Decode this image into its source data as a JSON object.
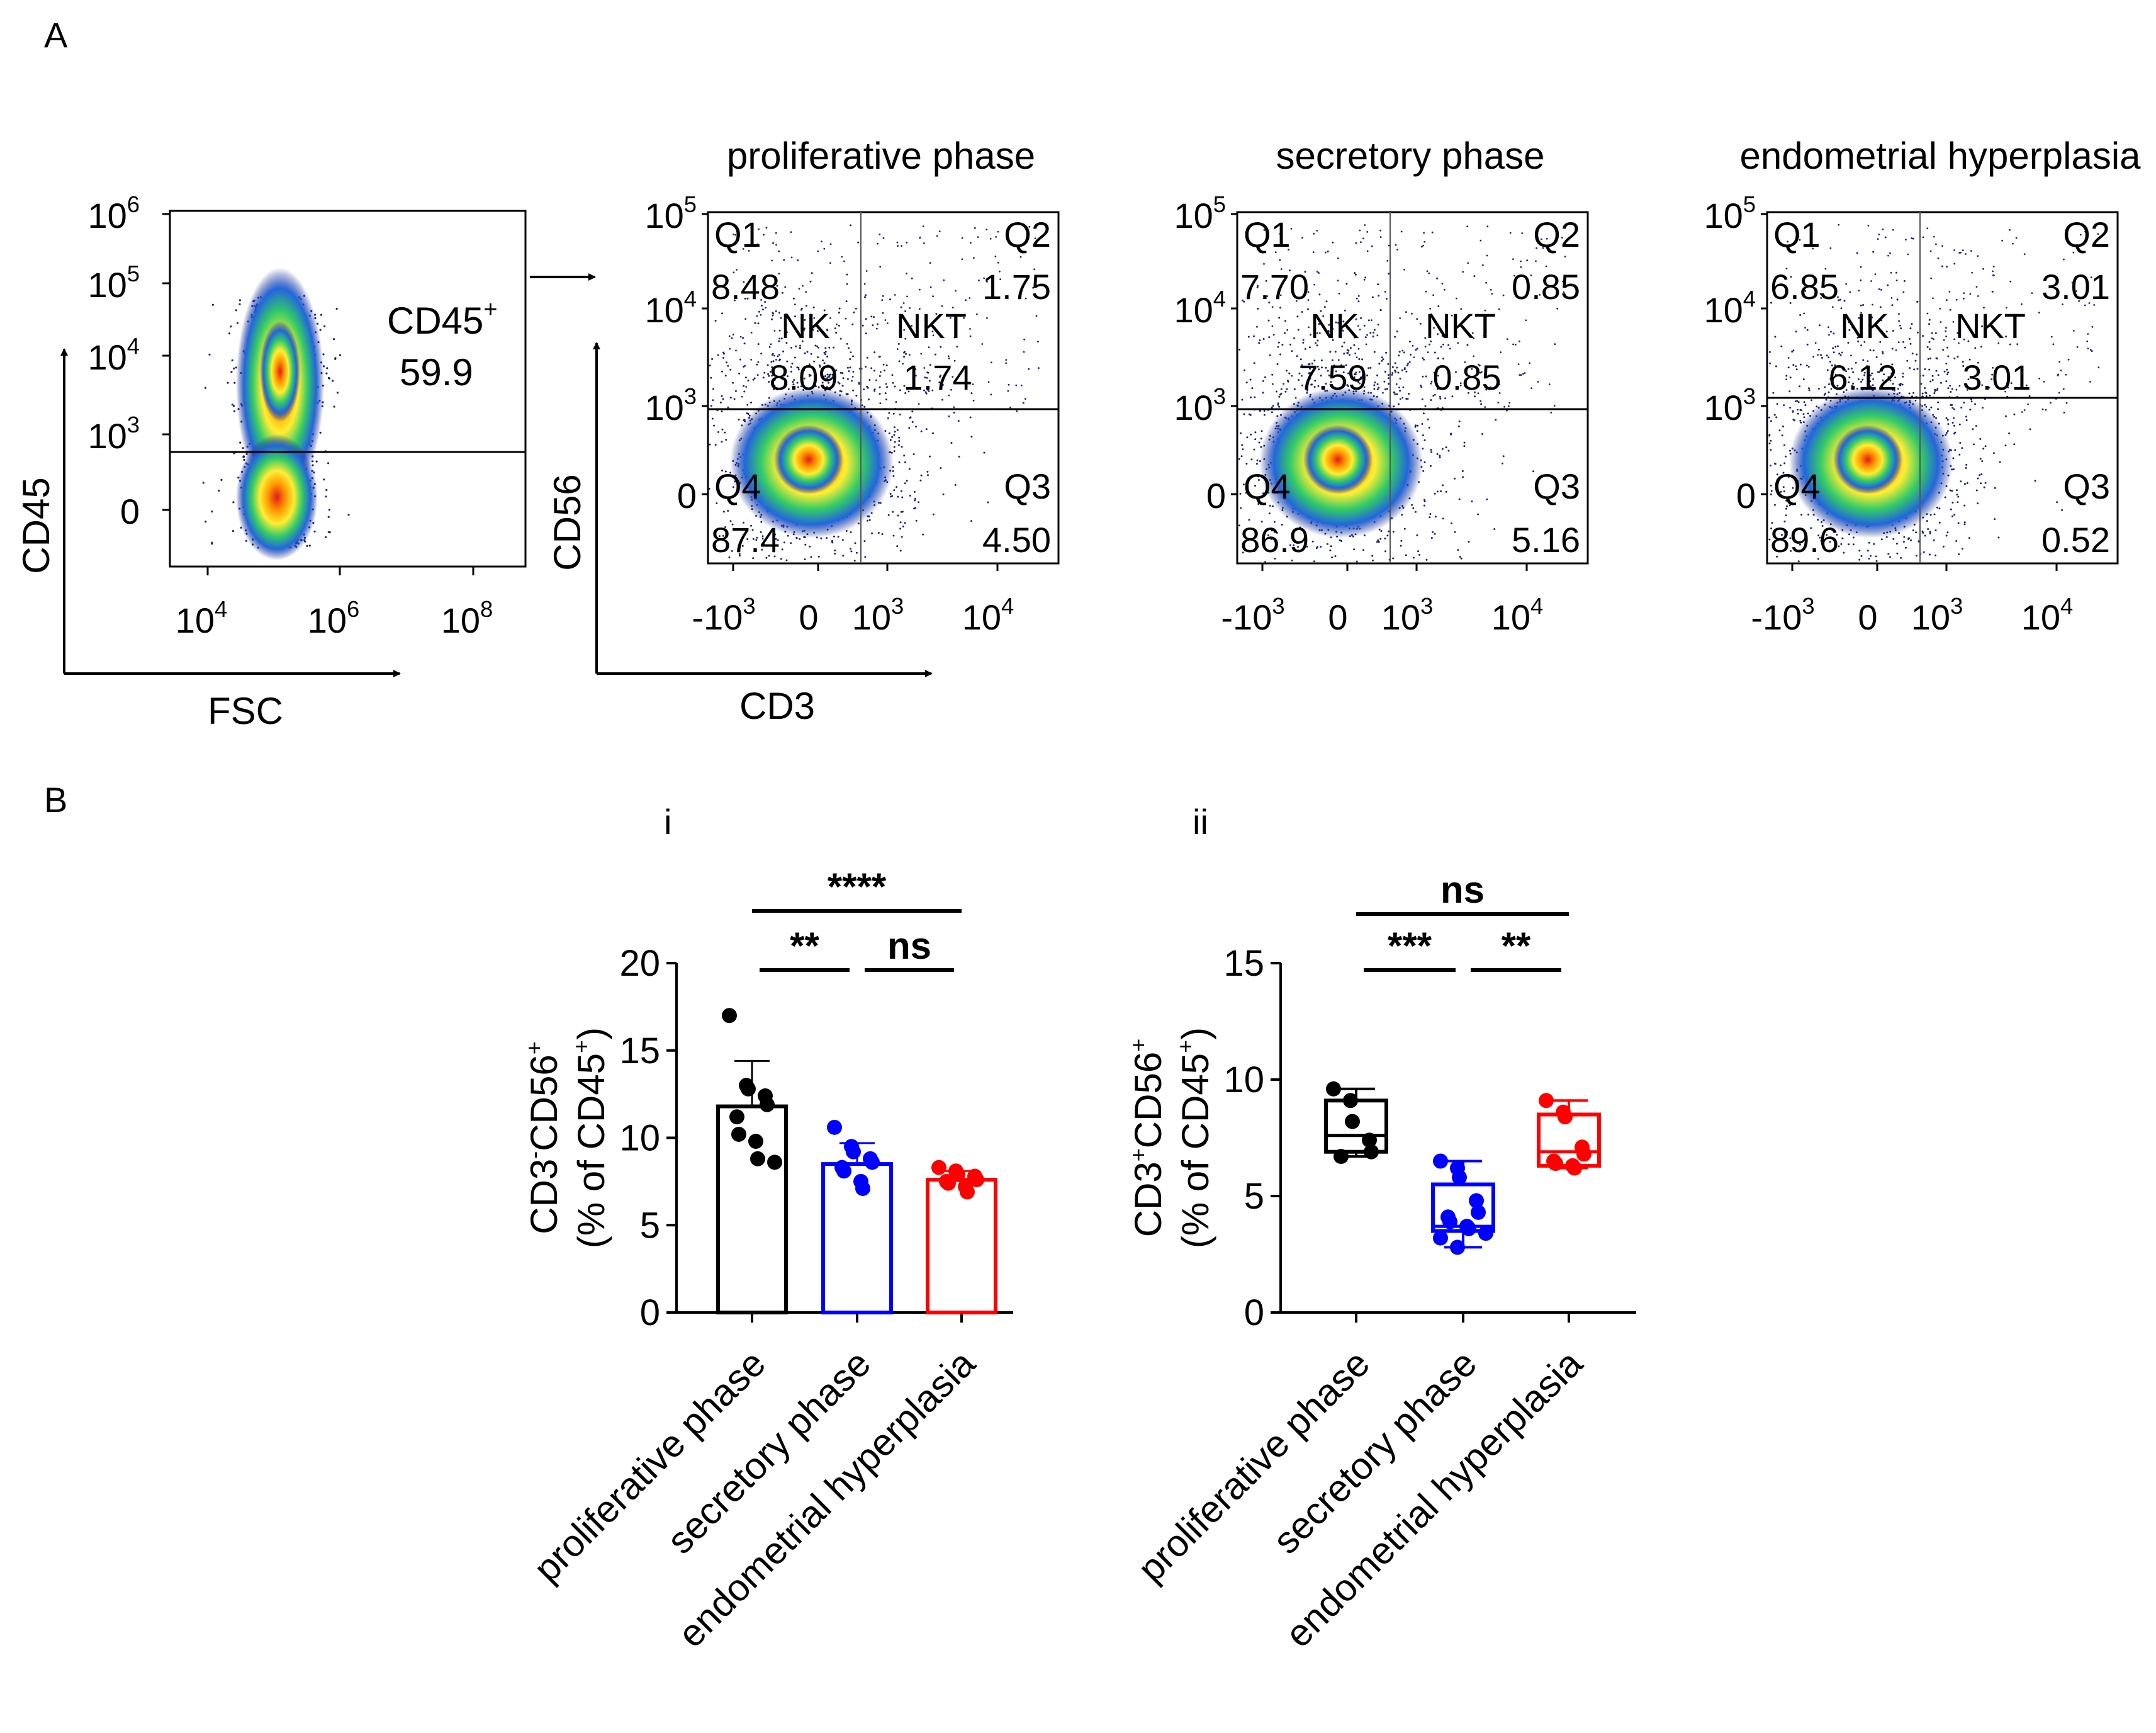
{
  "panel_labels": {
    "a": "A",
    "b": "B"
  },
  "subpanel_labels": {
    "i": "i",
    "ii": "ii"
  },
  "gating": {
    "arrow_label": "→",
    "cd45_gate": {
      "gate_name": "CD45",
      "gate_sup": "+",
      "gate_value": "59.9",
      "y_ticks": [
        {
          "base": "10",
          "exp": "6"
        },
        {
          "base": "10",
          "exp": "5"
        },
        {
          "base": "10",
          "exp": "4"
        },
        {
          "base": "10",
          "exp": "3"
        },
        {
          "base": "0",
          "exp": ""
        }
      ],
      "x_ticks": [
        {
          "base": "10",
          "exp": "4"
        },
        {
          "base": "10",
          "exp": "6"
        },
        {
          "base": "10",
          "exp": "8"
        }
      ]
    },
    "quadrant_x_ticks": [
      {
        "base": "-10",
        "exp": "3"
      },
      {
        "base": "0",
        "exp": ""
      },
      {
        "base": "10",
        "exp": "3"
      },
      {
        "base": "10",
        "exp": "4"
      }
    ],
    "quadrant_y_ticks": [
      {
        "base": "10",
        "exp": "5"
      },
      {
        "base": "10",
        "exp": "4"
      },
      {
        "base": "10",
        "exp": "3"
      },
      {
        "base": "0",
        "exp": ""
      }
    ],
    "quadrant_names": {
      "q1": "Q1",
      "q2": "Q2",
      "q3": "Q3",
      "q4": "Q4"
    },
    "gate_names": {
      "nk": "NK",
      "nkt": "NKT"
    },
    "plots": [
      {
        "title": "proliferative phase",
        "q1": "8.48",
        "q2": "1.75",
        "q3": "4.50",
        "q4": "87.4",
        "nk": "8.09",
        "nkt": "1.74"
      },
      {
        "title": "secretory phase",
        "q1": "7.70",
        "q2": "0.85",
        "q3": "5.16",
        "q4": "86.9",
        "nk": "7.59",
        "nkt": "0.85"
      },
      {
        "title": "endometrial hyperplasia",
        "q1": "6.85",
        "q2": "3.01",
        "q3": "0.52",
        "q4": "89.6",
        "nk": "6.12",
        "nkt": "3.01"
      }
    ],
    "axis_labels": {
      "cd45": "CD45",
      "fsc": "FSC",
      "cd56": "CD56",
      "cd3": "CD3"
    }
  },
  "chart_data": [
    {
      "type": "bar",
      "categories": [
        "proliferative phase",
        "secretory phase",
        "endometrial hyperplasia"
      ],
      "colors": [
        "#000000",
        "#0000ff",
        "#ff0000"
      ],
      "ylabel_line1": {
        "p1": "CD3",
        "s1": "-",
        "p2": "CD56",
        "s2": "+"
      },
      "ylabel_line2": {
        "p1": "(% of CD45",
        "s1": "+",
        "p2": ")"
      },
      "ylim": [
        0,
        20
      ],
      "yticks": [
        0,
        5,
        10,
        15,
        20
      ],
      "means": [
        11.8,
        8.5,
        7.6
      ],
      "sd": [
        2.6,
        1.2,
        0.5
      ],
      "points": [
        [
          17.0,
          13.0,
          12.8,
          12.4,
          11.9,
          11.2,
          10.2,
          9.8,
          8.8,
          8.6
        ],
        [
          10.6,
          9.5,
          9.2,
          8.8,
          8.6,
          8.3,
          8.1,
          7.5,
          7.1
        ],
        [
          8.3,
          8.1,
          7.9,
          7.8,
          7.6,
          7.5,
          7.4,
          7.2,
          6.9
        ]
      ],
      "significance": [
        {
          "from": 0,
          "to": 2,
          "label": "****",
          "level": 2
        },
        {
          "from": 0,
          "to": 1,
          "label": "**",
          "level": 1
        },
        {
          "from": 1,
          "to": 2,
          "label": "ns",
          "level": 1
        }
      ]
    },
    {
      "type": "box",
      "categories": [
        "proliferative phase",
        "secretory phase",
        "endometrial hyperplasia"
      ],
      "colors": [
        "#000000",
        "#0000ff",
        "#ff0000"
      ],
      "ylabel_line1": {
        "p1": "CD3",
        "s1": "+",
        "p2": "CD56",
        "s2": "+"
      },
      "ylabel_line2": {
        "p1": "(% of CD45",
        "s1": "+",
        "p2": ")"
      },
      "ylim": [
        0,
        15
      ],
      "yticks": [
        0,
        5,
        10,
        15
      ],
      "boxes": [
        {
          "min": 6.7,
          "q1": 6.9,
          "median": 7.6,
          "q3": 9.1,
          "max": 9.6
        },
        {
          "min": 2.8,
          "q1": 3.5,
          "median": 3.7,
          "q3": 5.5,
          "max": 6.5
        },
        {
          "min": 6.2,
          "q1": 6.3,
          "median": 6.9,
          "q3": 8.5,
          "max": 9.1
        }
      ],
      "points": [
        [
          9.6,
          9.1,
          8.2,
          7.4,
          6.9,
          6.7
        ],
        [
          6.5,
          6.2,
          5.8,
          4.8,
          4.3,
          4.1,
          3.9,
          3.7,
          3.6,
          3.4,
          3.2,
          2.8
        ],
        [
          9.1,
          8.6,
          8.4,
          7.1,
          6.8,
          6.5,
          6.4,
          6.3,
          6.2
        ]
      ],
      "significance": [
        {
          "from": 0,
          "to": 2,
          "label": "ns",
          "level": 2
        },
        {
          "from": 0,
          "to": 1,
          "label": "***",
          "level": 1
        },
        {
          "from": 1,
          "to": 2,
          "label": "**",
          "level": 1
        }
      ]
    }
  ]
}
